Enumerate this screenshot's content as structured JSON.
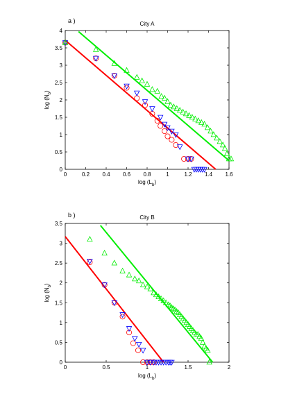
{
  "chart_data": [
    {
      "type": "scatter",
      "panel_label": "a )",
      "title": "City A",
      "xlabel_main": "log (L",
      "xlabel_sub": "b",
      "xlabel_end": ")",
      "ylabel_main": "log (N",
      "ylabel_sub": "b",
      "ylabel_end": ")",
      "xlim": [
        0,
        1.6
      ],
      "ylim": [
        0,
        4
      ],
      "xticks": [
        0,
        0.2,
        0.4,
        0.6,
        0.8,
        1,
        1.2,
        1.4,
        1.6
      ],
      "xtick_labels": [
        "0",
        "0.2",
        "0.4",
        "0.6",
        "0.8",
        "1",
        "1.2",
        "1.4",
        "1.6"
      ],
      "yticks": [
        0,
        0.5,
        1,
        1.5,
        2,
        2.5,
        3,
        3.5,
        4
      ],
      "ytick_labels": [
        "0",
        "0.5",
        "1",
        "1.5",
        "2",
        "2.5",
        "3",
        "3.5",
        "4"
      ],
      "grid": false,
      "lines": [
        {
          "color": "#ff0000",
          "x": [
            0,
            1.47
          ],
          "y": [
            3.72,
            0
          ]
        },
        {
          "color": "#00ee00",
          "x": [
            0.13,
            1.6
          ],
          "y": [
            3.97,
            0.25
          ]
        }
      ],
      "series": [
        {
          "marker": "circle",
          "color": "#ff0000",
          "points": [
            [
              0,
              3.65
            ],
            [
              0.3,
              3.2
            ],
            [
              0.48,
              2.7
            ],
            [
              0.6,
              2.35
            ],
            [
              0.7,
              2.05
            ],
            [
              0.78,
              1.85
            ],
            [
              0.85,
              1.6
            ],
            [
              0.9,
              1.4
            ],
            [
              0.93,
              1.25
            ],
            [
              0.97,
              1.1
            ],
            [
              1.0,
              0.95
            ],
            [
              1.04,
              0.85
            ],
            [
              1.08,
              0.7
            ],
            [
              1.16,
              0.3
            ],
            [
              1.2,
              0.3
            ],
            [
              1.23,
              0.3
            ]
          ]
        },
        {
          "marker": "triangle-down",
          "color": "#0000ff",
          "points": [
            [
              0,
              3.65
            ],
            [
              0.3,
              3.2
            ],
            [
              0.48,
              2.7
            ],
            [
              0.6,
              2.4
            ],
            [
              0.7,
              2.2
            ],
            [
              0.78,
              1.95
            ],
            [
              0.85,
              1.75
            ],
            [
              0.93,
              1.5
            ],
            [
              0.97,
              1.3
            ],
            [
              1.0,
              1.2
            ],
            [
              1.04,
              1.1
            ],
            [
              1.08,
              1.0
            ],
            [
              1.12,
              0.65
            ],
            [
              1.2,
              0.3
            ],
            [
              1.23,
              0.3
            ],
            [
              1.26,
              0
            ],
            [
              1.28,
              0
            ],
            [
              1.3,
              0
            ],
            [
              1.32,
              0
            ],
            [
              1.34,
              0
            ],
            [
              1.36,
              0
            ]
          ]
        },
        {
          "marker": "triangle-up",
          "color": "#00ee00",
          "points": [
            [
              0,
              3.65
            ],
            [
              0.3,
              3.45
            ],
            [
              0.48,
              3.05
            ],
            [
              0.6,
              2.85
            ],
            [
              0.7,
              2.65
            ],
            [
              0.75,
              2.55
            ],
            [
              0.8,
              2.45
            ],
            [
              0.85,
              2.3
            ],
            [
              0.9,
              2.25
            ],
            [
              0.94,
              2.1
            ],
            [
              0.97,
              2.05
            ],
            [
              1.0,
              1.95
            ],
            [
              1.03,
              1.85
            ],
            [
              1.06,
              1.8
            ],
            [
              1.09,
              1.75
            ],
            [
              1.12,
              1.7
            ],
            [
              1.15,
              1.65
            ],
            [
              1.18,
              1.6
            ],
            [
              1.21,
              1.55
            ],
            [
              1.24,
              1.5
            ],
            [
              1.27,
              1.45
            ],
            [
              1.3,
              1.4
            ],
            [
              1.33,
              1.35
            ],
            [
              1.36,
              1.3
            ],
            [
              1.39,
              1.2
            ],
            [
              1.42,
              1.1
            ],
            [
              1.45,
              1.0
            ],
            [
              1.48,
              0.9
            ],
            [
              1.51,
              0.8
            ],
            [
              1.54,
              0.7
            ],
            [
              1.56,
              0.6
            ],
            [
              1.58,
              0.45
            ],
            [
              1.6,
              0.3
            ],
            [
              1.62,
              0.3
            ]
          ]
        }
      ]
    },
    {
      "type": "scatter",
      "panel_label": "b )",
      "title": "City B",
      "xlabel_main": "log (L",
      "xlabel_sub": "b",
      "xlabel_end": ")",
      "ylabel_main": "log (N",
      "ylabel_sub": "b",
      "ylabel_end": ")",
      "xlim": [
        0,
        2
      ],
      "ylim": [
        0,
        3.5
      ],
      "xticks": [
        0,
        0.5,
        1,
        1.5,
        2
      ],
      "xtick_labels": [
        "0",
        "0.5",
        "1",
        "1.5",
        "2"
      ],
      "yticks": [
        0,
        0.5,
        1,
        1.5,
        2,
        2.5,
        3,
        3.5
      ],
      "ytick_labels": [
        "0",
        "0.5",
        "1",
        "1.5",
        "2",
        "2.5",
        "3",
        "3.5"
      ],
      "grid": false,
      "lines": [
        {
          "color": "#ff0000",
          "x": [
            0,
            1.2
          ],
          "y": [
            3.17,
            0
          ]
        },
        {
          "color": "#00ee00",
          "x": [
            0.43,
            1.8
          ],
          "y": [
            3.45,
            0
          ]
        }
      ],
      "series": [
        {
          "marker": "circle",
          "color": "#ff0000",
          "points": [
            [
              0.3,
              2.52
            ],
            [
              0.48,
              1.95
            ],
            [
              0.6,
              1.5
            ],
            [
              0.7,
              1.15
            ],
            [
              0.78,
              0.75
            ],
            [
              0.83,
              0.48
            ],
            [
              0.89,
              0.3
            ],
            [
              0.95,
              0
            ],
            [
              1.0,
              0
            ],
            [
              1.04,
              0
            ],
            [
              1.08,
              0
            ]
          ]
        },
        {
          "marker": "triangle-down",
          "color": "#0000ff",
          "points": [
            [
              0.3,
              2.55
            ],
            [
              0.48,
              1.95
            ],
            [
              0.6,
              1.5
            ],
            [
              0.7,
              1.2
            ],
            [
              0.78,
              0.85
            ],
            [
              0.85,
              0.6
            ],
            [
              0.9,
              0.45
            ],
            [
              0.95,
              0.3
            ],
            [
              1.0,
              0
            ],
            [
              1.04,
              0
            ],
            [
              1.08,
              0
            ],
            [
              1.11,
              0
            ],
            [
              1.14,
              0
            ],
            [
              1.17,
              0
            ],
            [
              1.2,
              0
            ],
            [
              1.23,
              0
            ],
            [
              1.26,
              0
            ],
            [
              1.28,
              0
            ],
            [
              1.3,
              0
            ]
          ]
        },
        {
          "marker": "triangle-up",
          "color": "#00ee00",
          "points": [
            [
              0.3,
              3.1
            ],
            [
              0.48,
              2.75
            ],
            [
              0.6,
              2.5
            ],
            [
              0.7,
              2.3
            ],
            [
              0.78,
              2.2
            ],
            [
              0.85,
              2.1
            ],
            [
              0.9,
              2.05
            ],
            [
              0.95,
              1.95
            ],
            [
              1.0,
              1.9
            ],
            [
              1.04,
              1.85
            ],
            [
              1.08,
              1.75
            ],
            [
              1.11,
              1.7
            ],
            [
              1.14,
              1.65
            ],
            [
              1.17,
              1.6
            ],
            [
              1.2,
              1.55
            ],
            [
              1.23,
              1.5
            ],
            [
              1.26,
              1.45
            ],
            [
              1.28,
              1.42
            ],
            [
              1.3,
              1.38
            ],
            [
              1.32,
              1.35
            ],
            [
              1.34,
              1.32
            ],
            [
              1.36,
              1.28
            ],
            [
              1.38,
              1.25
            ],
            [
              1.4,
              1.2
            ],
            [
              1.42,
              1.15
            ],
            [
              1.44,
              1.1
            ],
            [
              1.46,
              1.05
            ],
            [
              1.48,
              1.0
            ],
            [
              1.5,
              0.95
            ],
            [
              1.52,
              0.9
            ],
            [
              1.54,
              0.85
            ],
            [
              1.56,
              0.8
            ],
            [
              1.58,
              0.75
            ],
            [
              1.6,
              0.7
            ],
            [
              1.62,
              0.7
            ],
            [
              1.64,
              0.65
            ],
            [
              1.66,
              0.6
            ],
            [
              1.68,
              0.5
            ],
            [
              1.7,
              0.4
            ],
            [
              1.72,
              0.35
            ],
            [
              1.74,
              0.3
            ],
            [
              1.76,
              0
            ]
          ]
        }
      ]
    }
  ]
}
